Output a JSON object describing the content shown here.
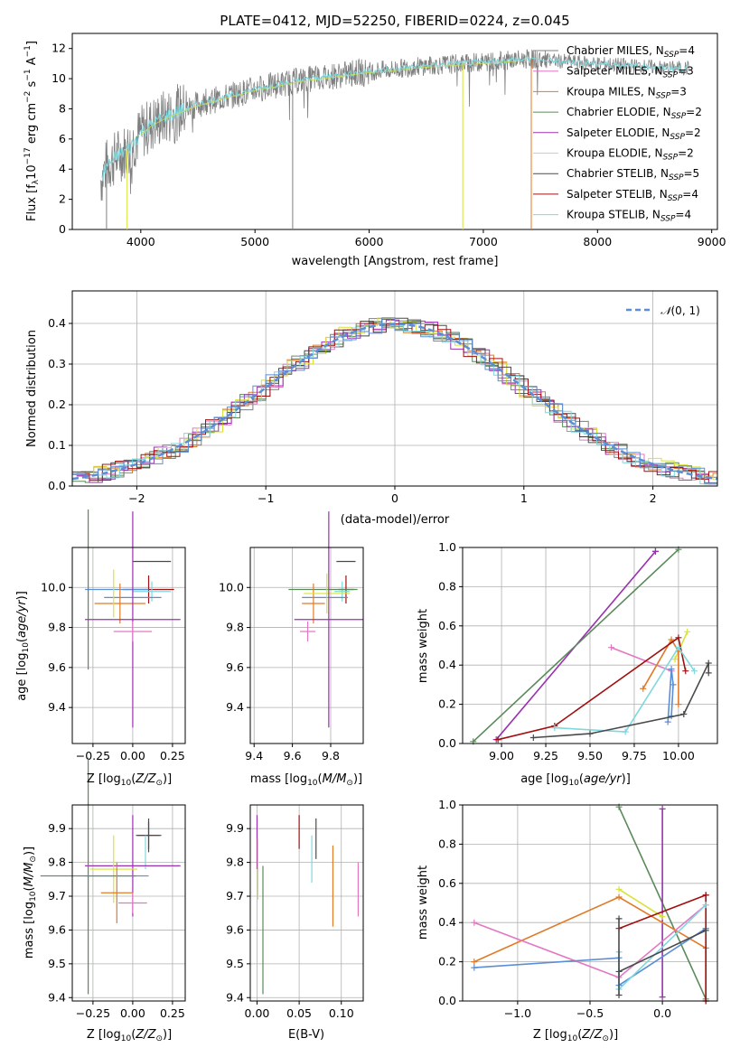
{
  "chart_data": [
    {
      "type": "line",
      "title": "PLATE=0412, MJD=52250, FIBERID=0224, z=0.045",
      "xlabel": "wavelength [Angstrom, rest frame]",
      "ylabel": "Flux [fλ10⁻¹⁷ erg cm⁻² s⁻¹ A⁻¹]",
      "xlim": [
        3400,
        9050
      ],
      "ylim": [
        0,
        13
      ],
      "xticks": [
        "4000",
        "5000",
        "6000",
        "7000",
        "8000",
        "9000"
      ],
      "yticks": [
        "0",
        "2",
        "4",
        "6",
        "8",
        "10",
        "12"
      ],
      "legend_position": "right",
      "continuum": {
        "x": [
          3650,
          3700,
          3800,
          3900,
          4000,
          4100,
          4200,
          4300,
          4400,
          4500,
          4600,
          4700,
          4800,
          4900,
          5000,
          5200,
          5400,
          5600,
          5800,
          6000,
          6200,
          6400,
          6600,
          6800,
          7000,
          7200,
          7400,
          7600,
          7800,
          8000,
          8200,
          8400,
          8600,
          8800
        ],
        "y": [
          3.3,
          4.2,
          4.9,
          5.4,
          6.4,
          7.0,
          7.4,
          7.7,
          8.0,
          8.3,
          8.5,
          8.7,
          8.9,
          9.1,
          9.3,
          9.6,
          9.9,
          10.1,
          10.3,
          10.5,
          10.6,
          10.8,
          10.9,
          11.0,
          11.1,
          11.2,
          11.3,
          11.2,
          11.1,
          11.0,
          10.9,
          10.8,
          10.7,
          10.7
        ]
      },
      "series": [
        {
          "name": "Chabrier MILES, N$_{SSP}$=4",
          "color": "#7f7f7f"
        },
        {
          "name": "Salpeter MILES, N$_{SSP}$=3",
          "color": "#e377c2"
        },
        {
          "name": "Kroupa MILES, N$_{SSP}$=3",
          "color": "#e07b28"
        },
        {
          "name": "Chabrier ELODIE, N$_{SSP}$=2",
          "color": "#5a8a5a"
        },
        {
          "name": "Salpeter ELODIE, N$_{SSP}$=2",
          "color": "#9b30b0"
        },
        {
          "name": "Kroupa ELODIE, N$_{SSP}$=2",
          "color": "#d8e23a"
        },
        {
          "name": "Chabrier STELIB, N$_{SSP}$=5",
          "color": "#4a4a4a"
        },
        {
          "name": "Salpeter STELIB, N$_{SSP}$=4",
          "color": "#a01010"
        },
        {
          "name": "Kroupa STELIB, N$_{SSP}$=4",
          "color": "#7fd8de"
        }
      ],
      "legend_labels": [
        {
          "pre": "Chabrier MILES, N",
          "sub": "SSP",
          "post": "=4"
        },
        {
          "pre": "Salpeter MILES, N",
          "sub": "SSP",
          "post": "=3"
        },
        {
          "pre": "Kroupa MILES, N",
          "sub": "SSP",
          "post": "=3"
        },
        {
          "pre": "Chabrier ELODIE, N",
          "sub": "SSP",
          "post": "=2"
        },
        {
          "pre": "Salpeter ELODIE, N",
          "sub": "SSP",
          "post": "=2"
        },
        {
          "pre": "Kroupa ELODIE, N",
          "sub": "SSP",
          "post": "=2"
        },
        {
          "pre": "Chabrier STELIB, N",
          "sub": "SSP",
          "post": "=5"
        },
        {
          "pre": "Salpeter STELIB, N",
          "sub": "SSP",
          "post": "=4"
        },
        {
          "pre": "Kroupa STELIB, N",
          "sub": "SSP",
          "post": "=4"
        }
      ],
      "drops": [
        {
          "x": 3700,
          "color": "#7f7f7f"
        },
        {
          "x": 5330,
          "color": "#7f7f7f"
        },
        {
          "x": 6820,
          "color": "#d8e23a"
        },
        {
          "x": 7420,
          "color": "#e07b28"
        },
        {
          "x": 3880,
          "color": "#d8e23a"
        }
      ]
    },
    {
      "type": "line",
      "title": "",
      "xlabel": "(data-model)/error",
      "ylabel": "Normed distribution",
      "xlim": [
        -2.5,
        2.5
      ],
      "ylim": [
        0,
        0.48
      ],
      "xticks": [
        "−2",
        "−1",
        "0",
        "1",
        "2"
      ],
      "yticks": [
        "0.0",
        "0.1",
        "0.2",
        "0.3",
        "0.4"
      ],
      "grid": true,
      "legend": "N(0, 1)",
      "legend_position": "top-right",
      "gaussian": {
        "mu": 0,
        "sigma": 1,
        "style": "dashed",
        "color": "#5b8ed6"
      },
      "bin_width": 0.1
    },
    {
      "type": "scatter",
      "xlabel": "Z [log10(Z/Z⊙)]",
      "ylabel": "age [log10(age/yr)]",
      "xlim": [
        -0.38,
        0.33
      ],
      "ylim": [
        9.22,
        10.2
      ],
      "xticks": [
        "−0.25",
        "0.00",
        "0.25"
      ],
      "yticks": [
        "9.4",
        "9.6",
        "9.8",
        "10.0"
      ],
      "grid": true,
      "points": [
        {
          "x": 0.12,
          "y": 10.13,
          "xerr": 0.12,
          "yerr": 0.0,
          "color": "#4a4a4a"
        },
        {
          "x": 0.1,
          "y": 9.99,
          "xerr": 0.16,
          "yerr": 0.07,
          "color": "#a01010"
        },
        {
          "x": 0.12,
          "y": 9.98,
          "xerr": 0.12,
          "yerr": 0.05,
          "color": "#7fd8de"
        },
        {
          "x": -0.1,
          "y": 9.99,
          "xerr": 0.2,
          "yerr": 0.0,
          "color": "#5b8ed6"
        },
        {
          "x": -0.28,
          "y": 9.99,
          "xerr": 0.0,
          "yerr": 0.4,
          "color": "#5a8a5a"
        },
        {
          "x": 0.0,
          "y": 9.95,
          "xerr": 0.18,
          "yerr": 0.0,
          "color": "#5b8ed6"
        },
        {
          "x": -0.08,
          "y": 9.92,
          "xerr": 0.16,
          "yerr": 0.1,
          "color": "#e07b28"
        },
        {
          "x": -0.12,
          "y": 9.97,
          "xerr": 0.0,
          "yerr": 0.12,
          "color": "#d8e23a"
        },
        {
          "x": 0.0,
          "y": 9.84,
          "xerr": 0.3,
          "yerr": 0.54,
          "color": "#9b30b0"
        },
        {
          "x": 0.0,
          "y": 9.78,
          "xerr": 0.12,
          "yerr": 0.05,
          "color": "#e377c2"
        }
      ]
    },
    {
      "type": "scatter",
      "xlabel": "mass [log10(M/M⊙)]",
      "ylabel": "",
      "xlim": [
        9.38,
        9.97
      ],
      "ylim": [
        9.22,
        10.2
      ],
      "xticks": [
        "9.4",
        "9.6",
        "9.8"
      ],
      "yticks": [
        "9.4",
        "9.6",
        "9.8",
        "10.0"
      ],
      "grid": true,
      "points": [
        {
          "x": 9.88,
          "y": 10.13,
          "xerr": 0.05,
          "yerr": 0.0,
          "color": "#4a4a4a"
        },
        {
          "x": 9.88,
          "y": 9.99,
          "xerr": 0.04,
          "yerr": 0.07,
          "color": "#a01010"
        },
        {
          "x": 9.86,
          "y": 9.98,
          "xerr": 0.04,
          "yerr": 0.05,
          "color": "#7fd8de"
        },
        {
          "x": 9.76,
          "y": 9.99,
          "xerr": 0.18,
          "yerr": 0.0,
          "color": "#5a8a5a"
        },
        {
          "x": 9.77,
          "y": 9.95,
          "xerr": 0.12,
          "yerr": 0.0,
          "color": "#5b8ed6"
        },
        {
          "x": 9.71,
          "y": 9.92,
          "xerr": 0.06,
          "yerr": 0.1,
          "color": "#e07b28"
        },
        {
          "x": 9.78,
          "y": 9.97,
          "xerr": 0.12,
          "yerr": 0.1,
          "color": "#d8e23a"
        },
        {
          "x": 9.79,
          "y": 9.84,
          "xerr": 0.18,
          "yerr": 0.54,
          "color": "#9b30b0"
        },
        {
          "x": 9.68,
          "y": 9.78,
          "xerr": 0.04,
          "yerr": 0.05,
          "color": "#e377c2"
        }
      ]
    },
    {
      "type": "line",
      "xlabel": "age  [log10(age/yr)]",
      "ylabel": "mass weight",
      "xlim": [
        8.78,
        10.22
      ],
      "ylim": [
        0,
        1.0
      ],
      "xticks": [
        "9.00",
        "9.25",
        "9.50",
        "9.75",
        "10.00"
      ],
      "yticks": [
        "0.0",
        "0.2",
        "0.4",
        "0.6",
        "0.8",
        "1.0"
      ],
      "grid": true,
      "series": [
        {
          "color": "#9b30b0",
          "x": [
            8.97,
            9.87,
            9.87
          ],
          "y": [
            0.02,
            0.98,
            0.98
          ]
        },
        {
          "color": "#5a8a5a",
          "x": [
            8.84,
            10.0
          ],
          "y": [
            0.01,
            0.99
          ]
        },
        {
          "color": "#e377c2",
          "x": [
            9.62,
            9.96
          ],
          "y": [
            0.49,
            0.37
          ]
        },
        {
          "color": "#d8e23a",
          "x": [
            9.98,
            10.05
          ],
          "y": [
            0.43,
            0.57
          ]
        },
        {
          "color": "#e07b28",
          "x": [
            9.8,
            9.96,
            10.0,
            10.0
          ],
          "y": [
            0.28,
            0.53,
            0.47,
            0.2
          ]
        },
        {
          "color": "#5b8ed6",
          "x": [
            9.94,
            9.96,
            9.97,
            9.96
          ],
          "y": [
            0.11,
            0.38,
            0.3,
            0.14
          ]
        },
        {
          "color": "#a01010",
          "x": [
            8.98,
            9.3,
            10.0,
            10.04
          ],
          "y": [
            0.02,
            0.09,
            0.54,
            0.37
          ]
        },
        {
          "color": "#7fd8de",
          "x": [
            9.3,
            9.7,
            10.0,
            10.09
          ],
          "y": [
            0.08,
            0.06,
            0.49,
            0.37
          ]
        },
        {
          "color": "#4a4a4a",
          "x": [
            9.18,
            9.5,
            10.03,
            10.17,
            10.17
          ],
          "y": [
            0.03,
            0.05,
            0.15,
            0.41,
            0.36
          ]
        }
      ]
    },
    {
      "type": "scatter",
      "xlabel": "Z [log10(Z/Z⊙)]",
      "ylabel": "mass [log10(M/M⊙)]",
      "xlim": [
        -0.38,
        0.33
      ],
      "ylim": [
        9.39,
        9.97
      ],
      "xticks": [
        "−0.25",
        "0.00",
        "0.25"
      ],
      "yticks": [
        "9.4",
        "9.5",
        "9.6",
        "9.7",
        "9.8",
        "9.9"
      ],
      "grid": true,
      "points": [
        {
          "x": 0.1,
          "y": 9.88,
          "xerr": 0.07,
          "yerr": 0.04,
          "color": "#a01010"
        },
        {
          "x": 0.1,
          "y": 9.88,
          "xerr": 0.08,
          "yerr": 0.05,
          "color": "#4a4a4a"
        },
        {
          "x": 0.08,
          "y": 9.83,
          "xerr": 0.0,
          "yerr": 0.05,
          "color": "#7fd8de"
        },
        {
          "x": 0.0,
          "y": 9.79,
          "xerr": 0.3,
          "yerr": 0.15,
          "color": "#9b30b0"
        },
        {
          "x": -0.12,
          "y": 9.78,
          "xerr": 0.15,
          "yerr": 0.1,
          "color": "#d8e23a"
        },
        {
          "x": -0.1,
          "y": 9.76,
          "xerr": 0.2,
          "yerr": 0.0,
          "color": "#5b8ed6"
        },
        {
          "x": -0.28,
          "y": 9.76,
          "xerr": 0.3,
          "yerr": 0.35,
          "color": "#5a8a5a"
        },
        {
          "x": -0.1,
          "y": 9.71,
          "xerr": 0.1,
          "yerr": 0.09,
          "color": "#e07b28"
        },
        {
          "x": 0.0,
          "y": 9.68,
          "xerr": 0.09,
          "yerr": 0.03,
          "color": "#e377c2"
        }
      ]
    },
    {
      "type": "scatter",
      "xlabel": "E(B-V)",
      "ylabel": "",
      "xlim": [
        -0.008,
        0.126
      ],
      "ylim": [
        9.39,
        9.97
      ],
      "xticks": [
        "0.00",
        "0.05",
        "0.10"
      ],
      "yticks": [
        "9.4",
        "9.5",
        "9.6",
        "9.7",
        "9.8",
        "9.9"
      ],
      "grid": true,
      "points": [
        {
          "x": 0.0,
          "y": 9.86,
          "yerr": 0.08,
          "color": "#9b30b0"
        },
        {
          "x": 0.001,
          "y": 9.78,
          "yerr": 0.09,
          "color": "#d8e23a"
        },
        {
          "x": 0.007,
          "y": 9.6,
          "yerr": 0.19,
          "color": "#5a8a5a"
        },
        {
          "x": 0.05,
          "y": 9.89,
          "yerr": 0.05,
          "color": "#a01010"
        },
        {
          "x": 0.07,
          "y": 9.87,
          "yerr": 0.06,
          "color": "#4a4a4a"
        },
        {
          "x": 0.065,
          "y": 9.81,
          "yerr": 0.07,
          "color": "#7fd8de"
        },
        {
          "x": 0.09,
          "y": 9.73,
          "yerr": 0.12,
          "color": "#e07b28"
        },
        {
          "x": 0.12,
          "y": 9.72,
          "yerr": 0.08,
          "color": "#e377c2"
        }
      ]
    },
    {
      "type": "line",
      "xlabel": "Z [log10(Z/Z⊙)]",
      "ylabel": "mass weight",
      "xlim": [
        -1.38,
        0.38
      ],
      "ylim": [
        0,
        1.0
      ],
      "xticks": [
        "−1.0",
        "−0.5",
        "0.0"
      ],
      "yticks": [
        "0.0",
        "0.2",
        "0.4",
        "0.6",
        "0.8",
        "1.0"
      ],
      "grid": true,
      "series": [
        {
          "color": "#5a8a5a",
          "x": [
            -0.3,
            0.3
          ],
          "y": [
            0.99,
            0.01
          ]
        },
        {
          "color": "#9b30b0",
          "x": [
            0.0,
            0.0
          ],
          "y": [
            0.98,
            0.02
          ]
        },
        {
          "color": "#d8e23a",
          "x": [
            -0.3,
            0.0
          ],
          "y": [
            0.57,
            0.43
          ]
        },
        {
          "color": "#e07b28",
          "x": [
            -1.3,
            -0.3,
            0.3,
            0.3
          ],
          "y": [
            0.2,
            0.53,
            0.27,
            0.0
          ]
        },
        {
          "color": "#e377c2",
          "x": [
            -1.3,
            -0.3,
            0.3
          ],
          "y": [
            0.4,
            0.12,
            0.49
          ]
        },
        {
          "color": "#5b8ed6",
          "x": [
            -1.3,
            -0.3,
            -0.3,
            0.3,
            0.3
          ],
          "y": [
            0.17,
            0.22,
            0.08,
            0.37,
            0.37
          ]
        },
        {
          "color": "#a01010",
          "x": [
            -0.3,
            0.3,
            0.3,
            0.3
          ],
          "y": [
            0.37,
            0.54,
            0.0,
            0.54
          ]
        },
        {
          "color": "#7fd8de",
          "x": [
            -0.3,
            -0.3,
            0.3
          ],
          "y": [
            0.25,
            0.06,
            0.49
          ]
        },
        {
          "color": "#4a4a4a",
          "x": [
            -0.3,
            -0.3,
            -0.3,
            0.3
          ],
          "y": [
            0.42,
            0.03,
            0.15,
            0.36
          ]
        }
      ]
    }
  ]
}
